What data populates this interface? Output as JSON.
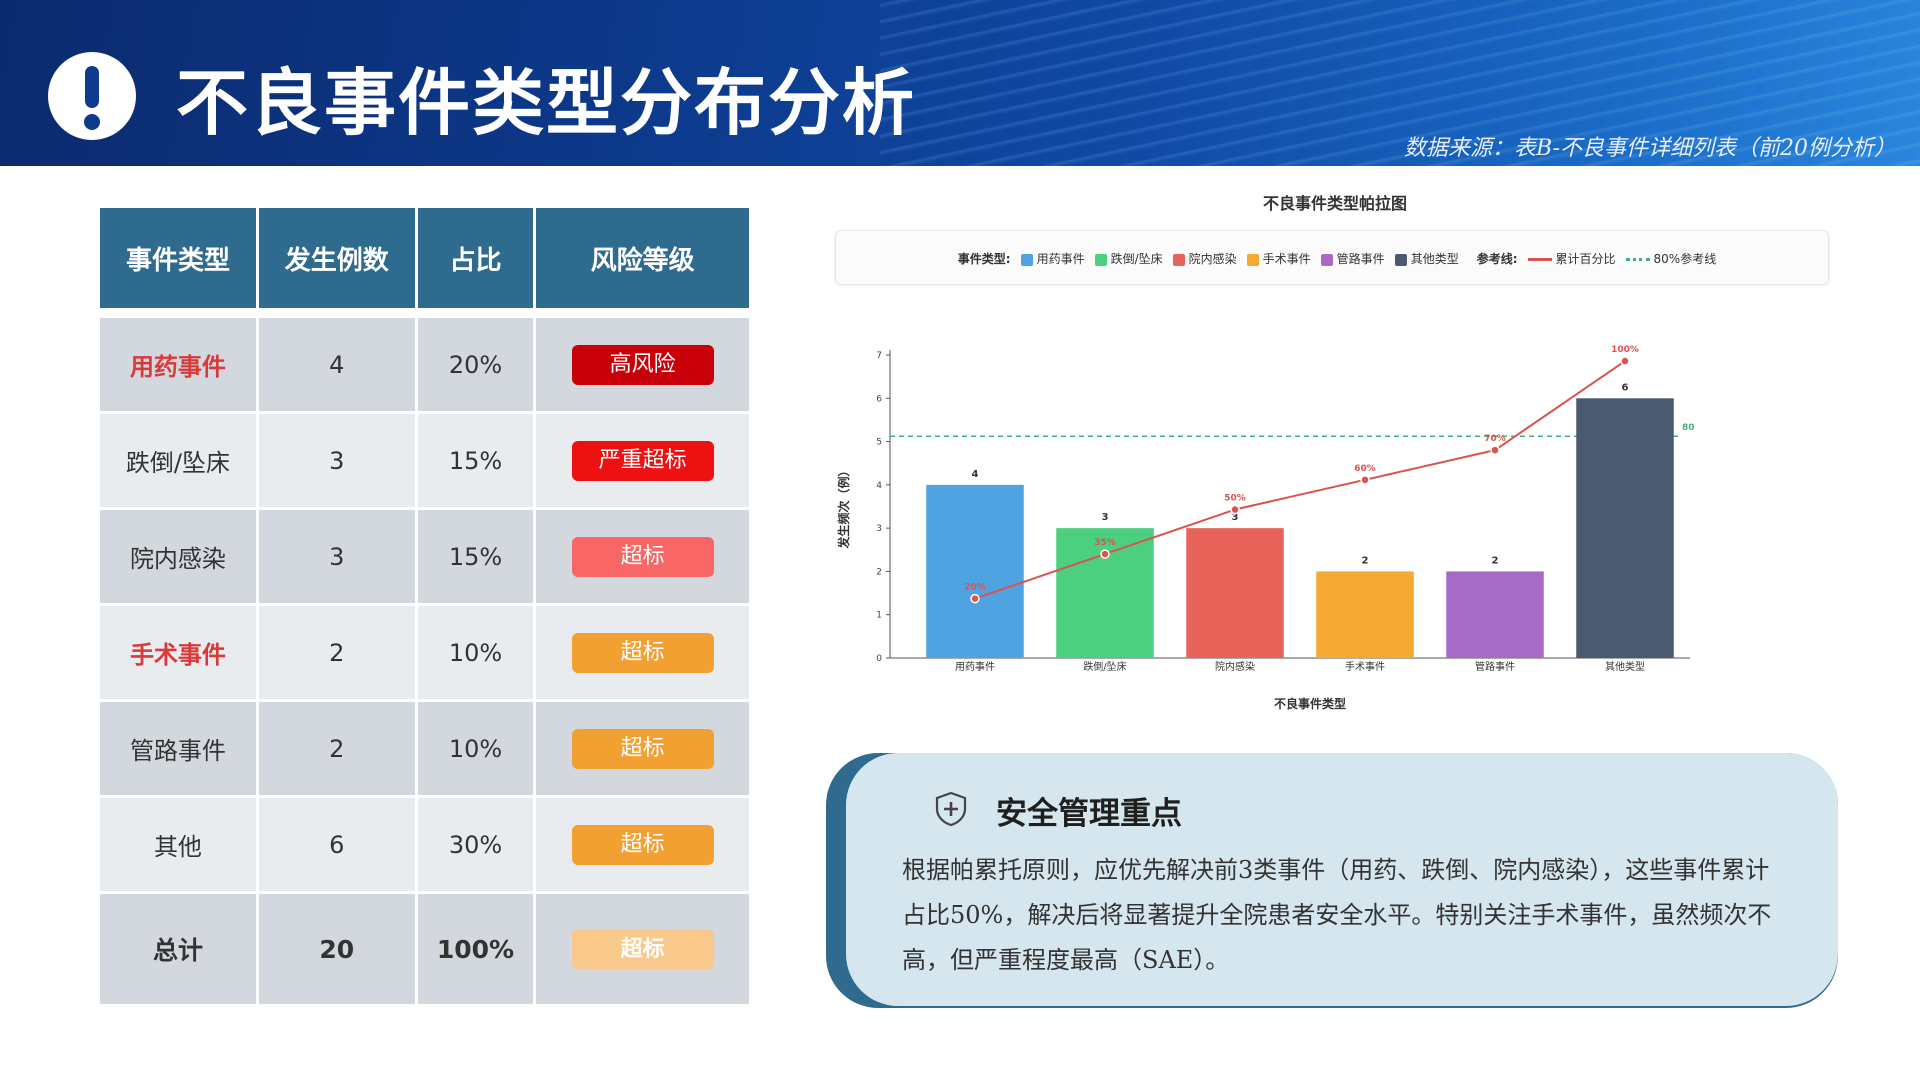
{
  "header": {
    "title": "不良事件类型分布分析",
    "source": "数据来源：表B-不良事件详细列表（前20例分析）",
    "icon": "exclamation-circle-icon"
  },
  "table": {
    "headers": [
      "事件类型",
      "发生例数",
      "占比",
      "风险等级"
    ],
    "rows": [
      {
        "type": "用药事件",
        "count": "4",
        "ratio": "20%",
        "risk": "高风险",
        "risk_color": "#c8000a",
        "type_highlight": true
      },
      {
        "type": "跌倒/坠床",
        "count": "3",
        "ratio": "15%",
        "risk": "严重超标",
        "risk_color": "#ee1111",
        "type_highlight": false
      },
      {
        "type": "院内感染",
        "count": "3",
        "ratio": "15%",
        "risk": "超标",
        "risk_color": "#f86666",
        "type_highlight": false
      },
      {
        "type": "手术事件",
        "count": "2",
        "ratio": "10%",
        "risk": "超标",
        "risk_color": "#f3a033",
        "type_highlight": true
      },
      {
        "type": "管路事件",
        "count": "2",
        "ratio": "10%",
        "risk": "超标",
        "risk_color": "#f3a033",
        "type_highlight": false
      },
      {
        "type": "其他",
        "count": "6",
        "ratio": "30%",
        "risk": "超标",
        "risk_color": "#f3a033",
        "type_highlight": false
      }
    ],
    "total": {
      "type": "总计",
      "count": "20",
      "ratio": "100%",
      "risk": "超标",
      "risk_color": "#f8c98a"
    }
  },
  "chart_data": {
    "type": "bar",
    "title": "不良事件类型帕拉图",
    "xlabel": "不良事件类型",
    "ylabel": "发生频次（例）",
    "ylim": [
      0,
      7
    ],
    "yticks": [
      0,
      1,
      2,
      3,
      4,
      5,
      6,
      7
    ],
    "categories": [
      "用药事件",
      "跌倒/坠床",
      "院内感染",
      "手术事件",
      "管路事件",
      "其他类型"
    ],
    "values": [
      4,
      3,
      3,
      2,
      2,
      6
    ],
    "colors": [
      "#4fa3e0",
      "#4cd07f",
      "#e8635a",
      "#f5a933",
      "#a66bc6",
      "#4a5b70"
    ],
    "cumulative": {
      "name": "累计百分比",
      "values": [
        20,
        35,
        50,
        60,
        70,
        100
      ],
      "labels": [
        "20%",
        "35%",
        "50%",
        "60%",
        "70%",
        "100%"
      ],
      "color": "#d9534f"
    },
    "reference": {
      "name": "80%参考线",
      "value": 80,
      "label": "80",
      "color": "#3fb07a"
    },
    "legend": {
      "group_types": "事件类型:",
      "group_ref": "参考线:",
      "placement": "top"
    }
  },
  "info": {
    "heading": "安全管理重点",
    "icon": "shield-plus-icon",
    "text": "根据帕累托原则，应优先解决前3类事件（用药、跌倒、院内感染），这些事件累计占比50%，解决后将显著提升全院患者安全水平。特别关注手术事件，虽然频次不高，但严重程度最高（SAE）。"
  }
}
